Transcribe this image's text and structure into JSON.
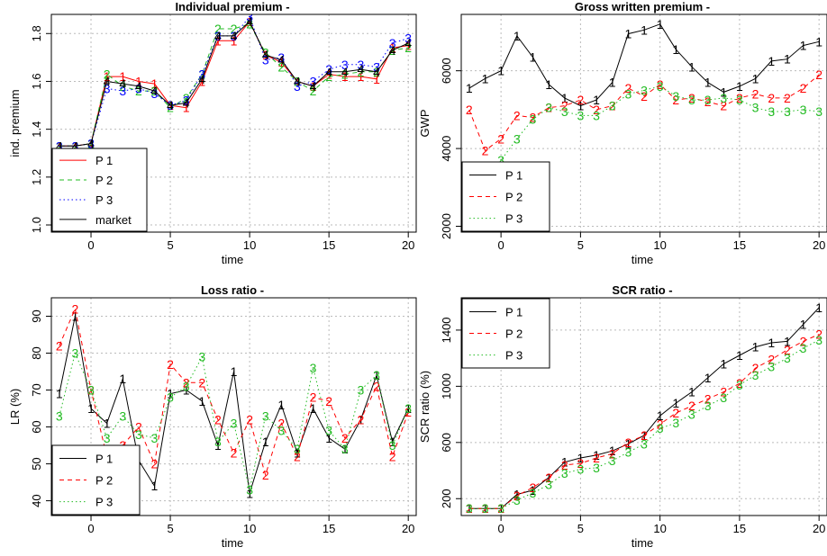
{
  "chart_data": [
    {
      "type": "line",
      "title": "Individual premium -",
      "xlabel": "time",
      "ylabel": "ind. premium",
      "xlim": [
        -2.5,
        20.5
      ],
      "ylim": [
        0.97,
        1.88
      ],
      "xticks": [
        0,
        5,
        10,
        15,
        20
      ],
      "yticks": [
        1.0,
        1.2,
        1.4,
        1.6,
        1.8
      ],
      "grid": true,
      "legend_position": "bottom-left",
      "x": [
        -2,
        -1,
        0,
        1,
        2,
        3,
        4,
        5,
        6,
        7,
        8,
        9,
        10,
        11,
        12,
        13,
        14,
        15,
        16,
        17,
        18,
        19,
        20
      ],
      "series": [
        {
          "name": "P 1",
          "marker": "1",
          "color": "#ff0000",
          "dash": "solid",
          "values": [
            1.33,
            1.33,
            1.34,
            1.62,
            1.62,
            1.6,
            1.59,
            1.5,
            1.49,
            1.6,
            1.77,
            1.77,
            1.85,
            1.71,
            1.68,
            1.6,
            1.58,
            1.63,
            1.62,
            1.62,
            1.61,
            1.74,
            1.75
          ]
        },
        {
          "name": "P 2",
          "marker": "2",
          "color": "#22bb22",
          "dash": "dashed",
          "values": [
            1.33,
            1.33,
            1.34,
            1.63,
            1.58,
            1.56,
            1.56,
            1.49,
            1.53,
            1.63,
            1.82,
            1.82,
            1.84,
            1.72,
            1.66,
            1.6,
            1.56,
            1.62,
            1.63,
            1.64,
            1.64,
            1.73,
            1.74
          ]
        },
        {
          "name": "P 3",
          "marker": "3",
          "color": "#0000ff",
          "dash": "dotted",
          "values": [
            1.33,
            1.33,
            1.34,
            1.57,
            1.56,
            1.57,
            1.55,
            1.5,
            1.52,
            1.63,
            1.79,
            1.79,
            1.87,
            1.69,
            1.7,
            1.58,
            1.6,
            1.65,
            1.67,
            1.67,
            1.66,
            1.76,
            1.78
          ]
        },
        {
          "name": "market",
          "marker": "4",
          "color": "#000000",
          "dash": "solid",
          "values": [
            1.33,
            1.33,
            1.34,
            1.6,
            1.59,
            1.58,
            1.56,
            1.5,
            1.51,
            1.61,
            1.79,
            1.79,
            1.85,
            1.71,
            1.69,
            1.6,
            1.58,
            1.64,
            1.64,
            1.65,
            1.64,
            1.73,
            1.76
          ]
        }
      ]
    },
    {
      "type": "line",
      "title": "Gross written premium -",
      "xlabel": "time",
      "ylabel": "GWP",
      "xlim": [
        -2.5,
        20.5
      ],
      "ylim": [
        1850,
        7450
      ],
      "xticks": [
        0,
        5,
        10,
        15,
        20
      ],
      "yticks": [
        2000,
        4000,
        6000
      ],
      "grid": true,
      "legend_position": "bottom-left",
      "x": [
        -2,
        -1,
        0,
        1,
        2,
        3,
        4,
        5,
        6,
        7,
        8,
        9,
        10,
        11,
        12,
        13,
        14,
        15,
        16,
        17,
        18,
        19,
        20
      ],
      "series": [
        {
          "name": "P 1",
          "marker": "1",
          "color": "#000000",
          "dash": "solid",
          "values": [
            5550,
            5800,
            6000,
            6900,
            6350,
            5650,
            5300,
            5100,
            5250,
            5700,
            6950,
            7050,
            7200,
            6550,
            6100,
            5700,
            5450,
            5600,
            5800,
            6250,
            6300,
            6650,
            6750
          ]
        },
        {
          "name": "P 2",
          "marker": "2",
          "color": "#ff0000",
          "dash": "dashed",
          "values": [
            5000,
            3950,
            4250,
            4850,
            4800,
            5050,
            5100,
            5250,
            5000,
            5100,
            5550,
            5350,
            5650,
            5250,
            5300,
            5200,
            5100,
            5300,
            5400,
            5300,
            5300,
            5550,
            5900
          ]
        },
        {
          "name": "P 3",
          "marker": "3",
          "color": "#22bb22",
          "dash": "dotted",
          "values": [
            2900,
            3050,
            3700,
            4250,
            4750,
            5050,
            4950,
            4850,
            4850,
            5100,
            5400,
            5500,
            5600,
            5350,
            5250,
            5250,
            5300,
            5250,
            5050,
            4950,
            4950,
            5000,
            4950
          ]
        }
      ]
    },
    {
      "type": "line",
      "title": "Loss ratio -",
      "xlabel": "time",
      "ylabel": "LR (%)",
      "xlim": [
        -2.5,
        20.5
      ],
      "ylim": [
        36,
        95
      ],
      "xticks": [
        0,
        5,
        10,
        15,
        20
      ],
      "yticks": [
        40,
        50,
        60,
        70,
        80,
        90
      ],
      "grid": true,
      "legend_position": "bottom-left",
      "x": [
        -2,
        -1,
        0,
        1,
        2,
        3,
        4,
        5,
        6,
        7,
        8,
        9,
        10,
        11,
        12,
        13,
        14,
        15,
        16,
        17,
        18,
        19,
        20
      ],
      "series": [
        {
          "name": "P 1",
          "marker": "1",
          "color": "#000000",
          "dash": "solid",
          "values": [
            69,
            90,
            65,
            61,
            73,
            51,
            44,
            69,
            70,
            67,
            55,
            75,
            42,
            56,
            66,
            53,
            65,
            57,
            54,
            62,
            74,
            56,
            65
          ]
        },
        {
          "name": "P 2",
          "marker": "2",
          "color": "#ff0000",
          "dash": "dashed",
          "values": [
            82,
            92,
            70,
            52,
            55,
            60,
            50,
            77,
            72,
            72,
            62,
            53,
            62,
            47,
            61,
            52,
            68,
            67,
            57,
            62,
            71,
            52,
            64
          ]
        },
        {
          "name": "P 3",
          "marker": "3",
          "color": "#22bb22",
          "dash": "dotted",
          "values": [
            63,
            80,
            70,
            57,
            63,
            58,
            57,
            68,
            71,
            79,
            56,
            61,
            43,
            63,
            59,
            54,
            76,
            59,
            54,
            70,
            74,
            55,
            65
          ]
        }
      ]
    },
    {
      "type": "line",
      "title": "SCR ratio -",
      "xlabel": "time",
      "ylabel": "SCR ratio (%)",
      "xlim": [
        -2.5,
        20.5
      ],
      "ylim": [
        80,
        1630
      ],
      "xticks": [
        0,
        5,
        10,
        15,
        20
      ],
      "yticks": [
        200,
        600,
        1000,
        1400
      ],
      "grid": true,
      "legend_position": "top-left",
      "x": [
        -2,
        -1,
        0,
        1,
        2,
        3,
        4,
        5,
        6,
        7,
        8,
        9,
        10,
        11,
        12,
        13,
        14,
        15,
        16,
        17,
        18,
        19,
        20
      ],
      "series": [
        {
          "name": "P 1",
          "marker": "1",
          "color": "#000000",
          "dash": "solid",
          "values": [
            130,
            130,
            130,
            230,
            260,
            350,
            460,
            490,
            510,
            540,
            590,
            650,
            790,
            880,
            960,
            1060,
            1160,
            1220,
            1280,
            1310,
            1320,
            1440,
            1560
          ]
        },
        {
          "name": "P 2",
          "marker": "2",
          "color": "#ff0000",
          "dash": "dashed",
          "values": [
            130,
            130,
            130,
            220,
            280,
            350,
            440,
            450,
            490,
            520,
            600,
            650,
            730,
            810,
            860,
            910,
            960,
            1020,
            1130,
            1190,
            1260,
            1320,
            1370
          ]
        },
        {
          "name": "P 3",
          "marker": "3",
          "color": "#22bb22",
          "dash": "dotted",
          "values": [
            130,
            130,
            130,
            190,
            240,
            300,
            380,
            410,
            420,
            470,
            530,
            590,
            700,
            740,
            800,
            860,
            920,
            1010,
            1080,
            1140,
            1200,
            1270,
            1330
          ]
        }
      ]
    }
  ]
}
